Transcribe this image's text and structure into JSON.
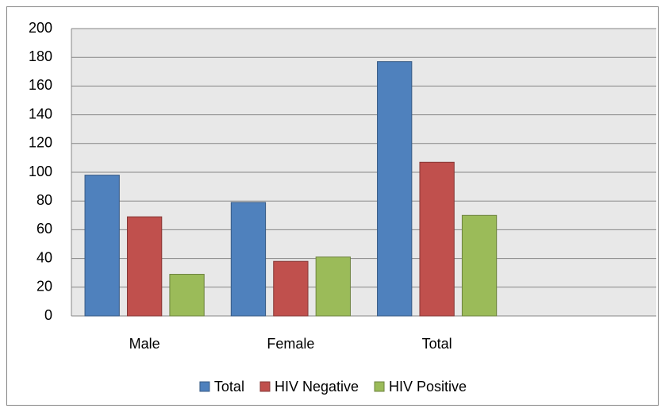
{
  "chart_data": {
    "type": "bar",
    "categories": [
      "Male",
      "Female",
      "Total",
      null
    ],
    "series": [
      {
        "name": "Total",
        "color": "#4f81bd",
        "values": [
          98,
          79,
          177,
          null
        ]
      },
      {
        "name": "HIV Negative",
        "color": "#c0504d",
        "values": [
          69,
          38,
          107,
          null
        ]
      },
      {
        "name": "HIV Positive",
        "color": "#9bbb59",
        "values": [
          29,
          41,
          70,
          null
        ]
      }
    ],
    "ylim": [
      0,
      200
    ],
    "yticks": [
      0,
      20,
      40,
      60,
      80,
      100,
      120,
      140,
      160,
      180,
      200
    ],
    "grid": true,
    "legend": "bottom"
  }
}
